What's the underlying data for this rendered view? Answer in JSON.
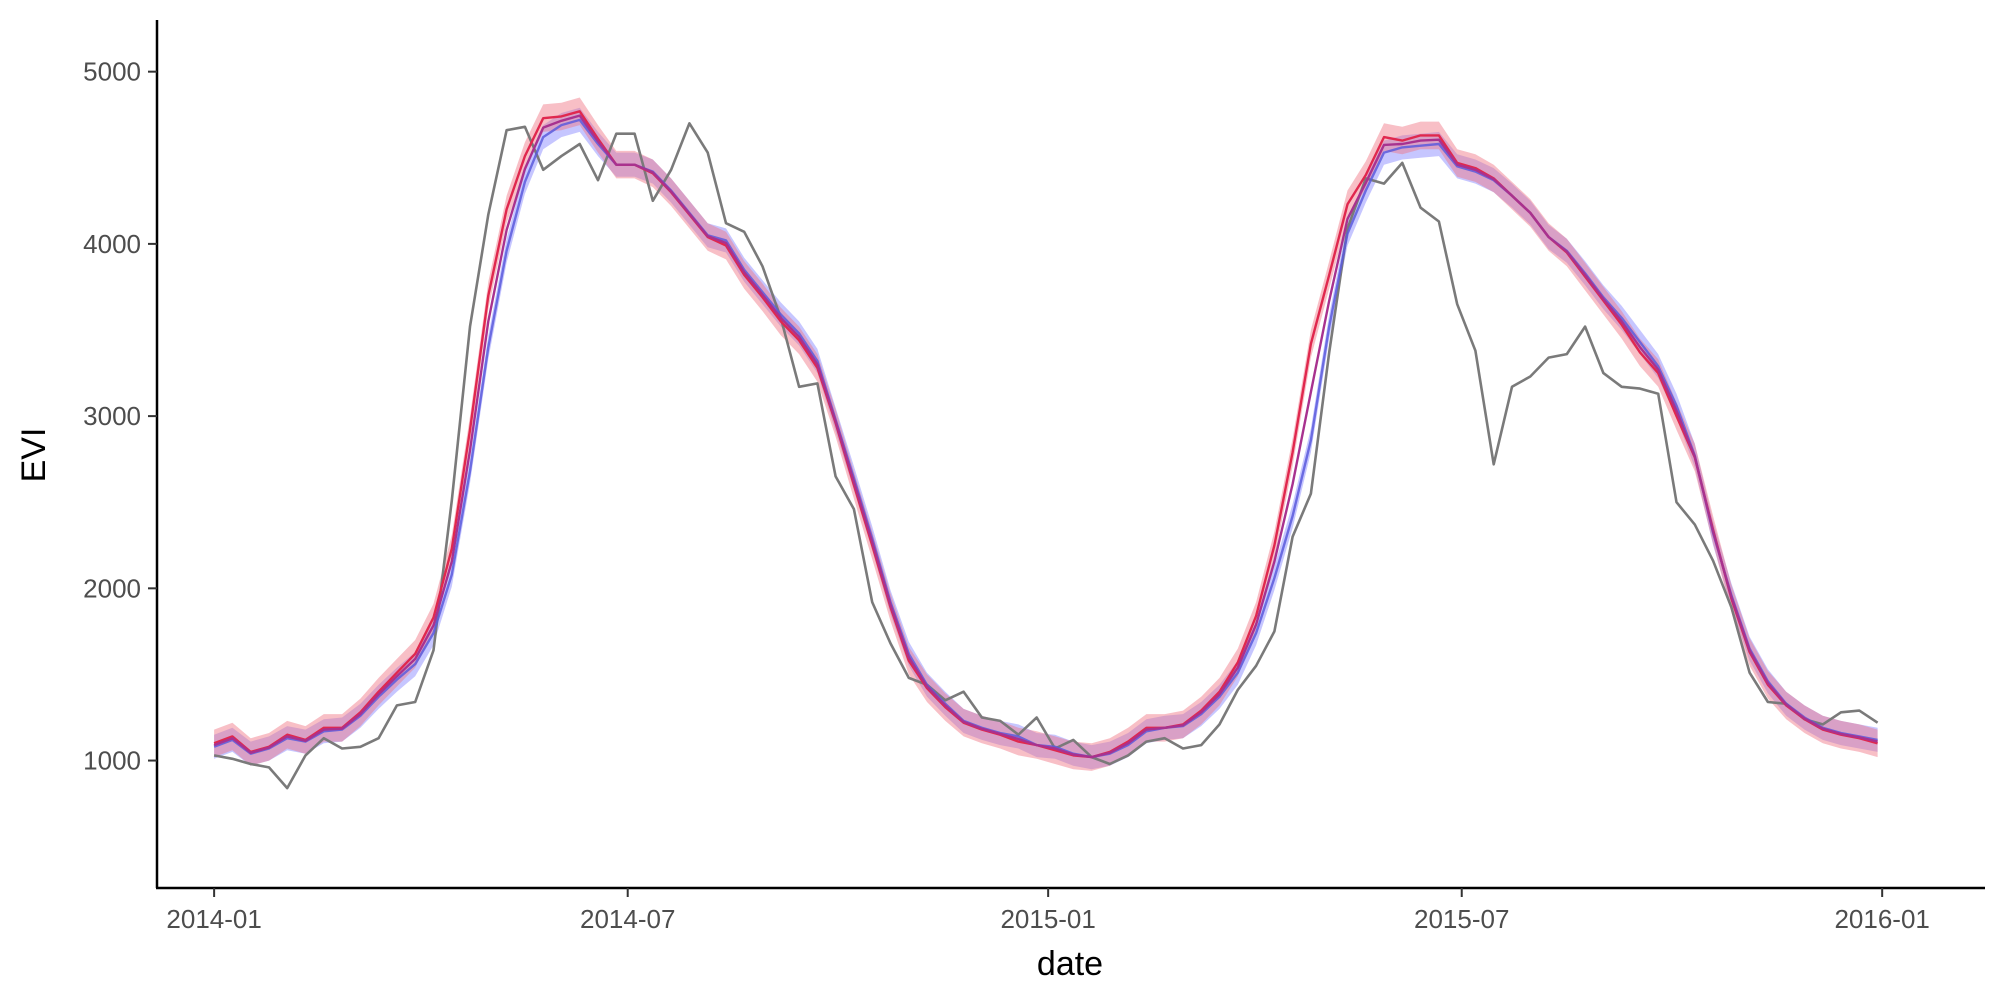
{
  "chart_data": {
    "type": "line",
    "title": "",
    "xlabel": "date",
    "ylabel": "EVI",
    "xlim": [
      "2013-12-07",
      "2016-02-15"
    ],
    "ylim": [
      260,
      5300
    ],
    "x_ticks": [
      "2014-01-01",
      "2014-07-01",
      "2015-01-01",
      "2015-07-01",
      "2016-01-01"
    ],
    "x_tick_labels": [
      "2014-01",
      "2014-07",
      "2015-01",
      "2015-07",
      "2016-01"
    ],
    "y_ticks": [
      1000,
      2000,
      3000,
      4000,
      5000
    ],
    "y_tick_labels": [
      "1000",
      "2000",
      "3000",
      "4000",
      "5000"
    ],
    "grid": false,
    "legend": "none",
    "x_start": "2014-01-01",
    "x_step_days": 8,
    "series": [
      {
        "color": "#7a7a7a",
        "band": false,
        "values": [
          1030,
          1010,
          980,
          960,
          840,
          1030,
          1130,
          1070,
          1080,
          1130,
          1320,
          1340,
          1640,
          2510,
          3520,
          4170,
          4660,
          4680,
          4430,
          4510,
          4580,
          4370,
          4640,
          4640,
          4250,
          4430,
          4700,
          4530,
          4120,
          4070,
          3870,
          3570,
          3170,
          3190,
          2650,
          2460,
          1920,
          1680,
          1480,
          1440,
          1350,
          1400,
          1250,
          1230,
          1150,
          1250,
          1070,
          1120,
          1020,
          980,
          1030,
          1110,
          1130,
          1070,
          1090,
          1210,
          1410,
          1550,
          1750,
          2300,
          2550,
          3370,
          4090,
          4380,
          4350,
          4470,
          4210,
          4130,
          3650,
          3380,
          2720,
          3170,
          3230,
          3340,
          3360,
          3520,
          3250,
          3170,
          3160,
          3130,
          2500,
          2370,
          2160,
          1890,
          1510,
          1340,
          1330,
          1240,
          1210,
          1280,
          1290,
          1220
        ]
      },
      {
        "color": "#5b5bdc",
        "band": true,
        "band_color": "#8080ff",
        "band_half_width": 70,
        "values": [
          1080,
          1120,
          1040,
          1070,
          1130,
          1110,
          1170,
          1180,
          1260,
          1370,
          1470,
          1560,
          1740,
          2080,
          2680,
          3400,
          3960,
          4360,
          4620,
          4690,
          4720,
          4580,
          4460,
          4460,
          4420,
          4310,
          4180,
          4050,
          4020,
          3850,
          3720,
          3590,
          3480,
          3320,
          2980,
          2640,
          2290,
          1920,
          1620,
          1440,
          1330,
          1230,
          1190,
          1160,
          1140,
          1090,
          1080,
          1040,
          1020,
          1040,
          1090,
          1170,
          1190,
          1200,
          1270,
          1370,
          1510,
          1740,
          2060,
          2420,
          2860,
          3520,
          4060,
          4310,
          4530,
          4560,
          4570,
          4580,
          4450,
          4420,
          4370,
          4280,
          4180,
          4040,
          3960,
          3830,
          3690,
          3570,
          3430,
          3290,
          3060,
          2770,
          2320,
          1960,
          1650,
          1460,
          1330,
          1250,
          1190,
          1160,
          1140,
          1120
        ]
      },
      {
        "color": "#e0284e",
        "band": true,
        "band_color": "#f07080",
        "band_half_width": 80,
        "values": [
          1100,
          1140,
          1050,
          1080,
          1150,
          1120,
          1190,
          1190,
          1280,
          1400,
          1510,
          1620,
          1830,
          2230,
          2920,
          3700,
          4200,
          4510,
          4730,
          4740,
          4770,
          4610,
          4460,
          4460,
          4410,
          4300,
          4170,
          4040,
          3990,
          3820,
          3690,
          3550,
          3440,
          3280,
          2960,
          2600,
          2250,
          1890,
          1580,
          1420,
          1310,
          1220,
          1180,
          1150,
          1110,
          1090,
          1060,
          1030,
          1020,
          1050,
          1110,
          1190,
          1190,
          1210,
          1290,
          1400,
          1570,
          1840,
          2250,
          2790,
          3420,
          3820,
          4230,
          4400,
          4620,
          4600,
          4630,
          4630,
          4470,
          4440,
          4380,
          4280,
          4180,
          4040,
          3950,
          3810,
          3670,
          3530,
          3370,
          3250,
          3000,
          2760,
          2340,
          1940,
          1630,
          1440,
          1320,
          1240,
          1180,
          1150,
          1130,
          1100
        ]
      },
      {
        "color": "#a8328f",
        "band": false,
        "values": [
          1090,
          1130,
          1045,
          1075,
          1140,
          1115,
          1180,
          1185,
          1270,
          1385,
          1490,
          1590,
          1785,
          2155,
          2800,
          3550,
          4080,
          4435,
          4675,
          4715,
          4745,
          4595,
          4460,
          4460,
          4415,
          4305,
          4175,
          4045,
          4005,
          3835,
          3705,
          3570,
          3460,
          3300,
          2970,
          2620,
          2270,
          1905,
          1600,
          1430,
          1320,
          1225,
          1185,
          1155,
          1125,
          1090,
          1070,
          1035,
          1020,
          1045,
          1100,
          1180,
          1190,
          1205,
          1280,
          1385,
          1540,
          1790,
          2155,
          2605,
          3140,
          3670,
          4145,
          4355,
          4575,
          4580,
          4600,
          4605,
          4460,
          4430,
          4375,
          4280,
          4180,
          4040,
          3955,
          3820,
          3680,
          3550,
          3400,
          3270,
          3030,
          2765,
          2330,
          1950,
          1640,
          1450,
          1325,
          1245,
          1185,
          1155,
          1135,
          1110
        ]
      }
    ]
  }
}
